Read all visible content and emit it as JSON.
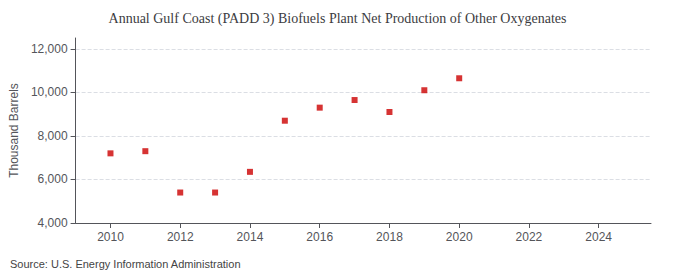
{
  "chart_data": {
    "type": "scatter",
    "title": "Annual Gulf Coast (PADD 3) Biofuels Plant Net Production of Other Oxygenates",
    "ylabel": "Thousand Barrels",
    "annotation": "Source: U.S. Energy Information Administration",
    "x": [
      2010,
      2011,
      2012,
      2013,
      2014,
      2015,
      2016,
      2017,
      2018,
      2019,
      2020
    ],
    "values": [
      7200,
      7300,
      5400,
      5400,
      6350,
      8700,
      9300,
      9650,
      9100,
      10100,
      10650
    ],
    "color": "#cc0000",
    "marker": "square",
    "xlim": [
      2009.0,
      2025.5
    ],
    "ylim": [
      4000,
      12500
    ],
    "xticks": [
      2010,
      2012,
      2014,
      2016,
      2018,
      2020,
      2022,
      2024
    ],
    "yticks": [
      {
        "value": 4000,
        "label": "4,000"
      },
      {
        "value": 6000,
        "label": "6,000"
      },
      {
        "value": 8000,
        "label": "8,000"
      },
      {
        "value": 10000,
        "label": "10,000"
      },
      {
        "value": 12000,
        "label": "12,000"
      }
    ],
    "grid": true
  }
}
